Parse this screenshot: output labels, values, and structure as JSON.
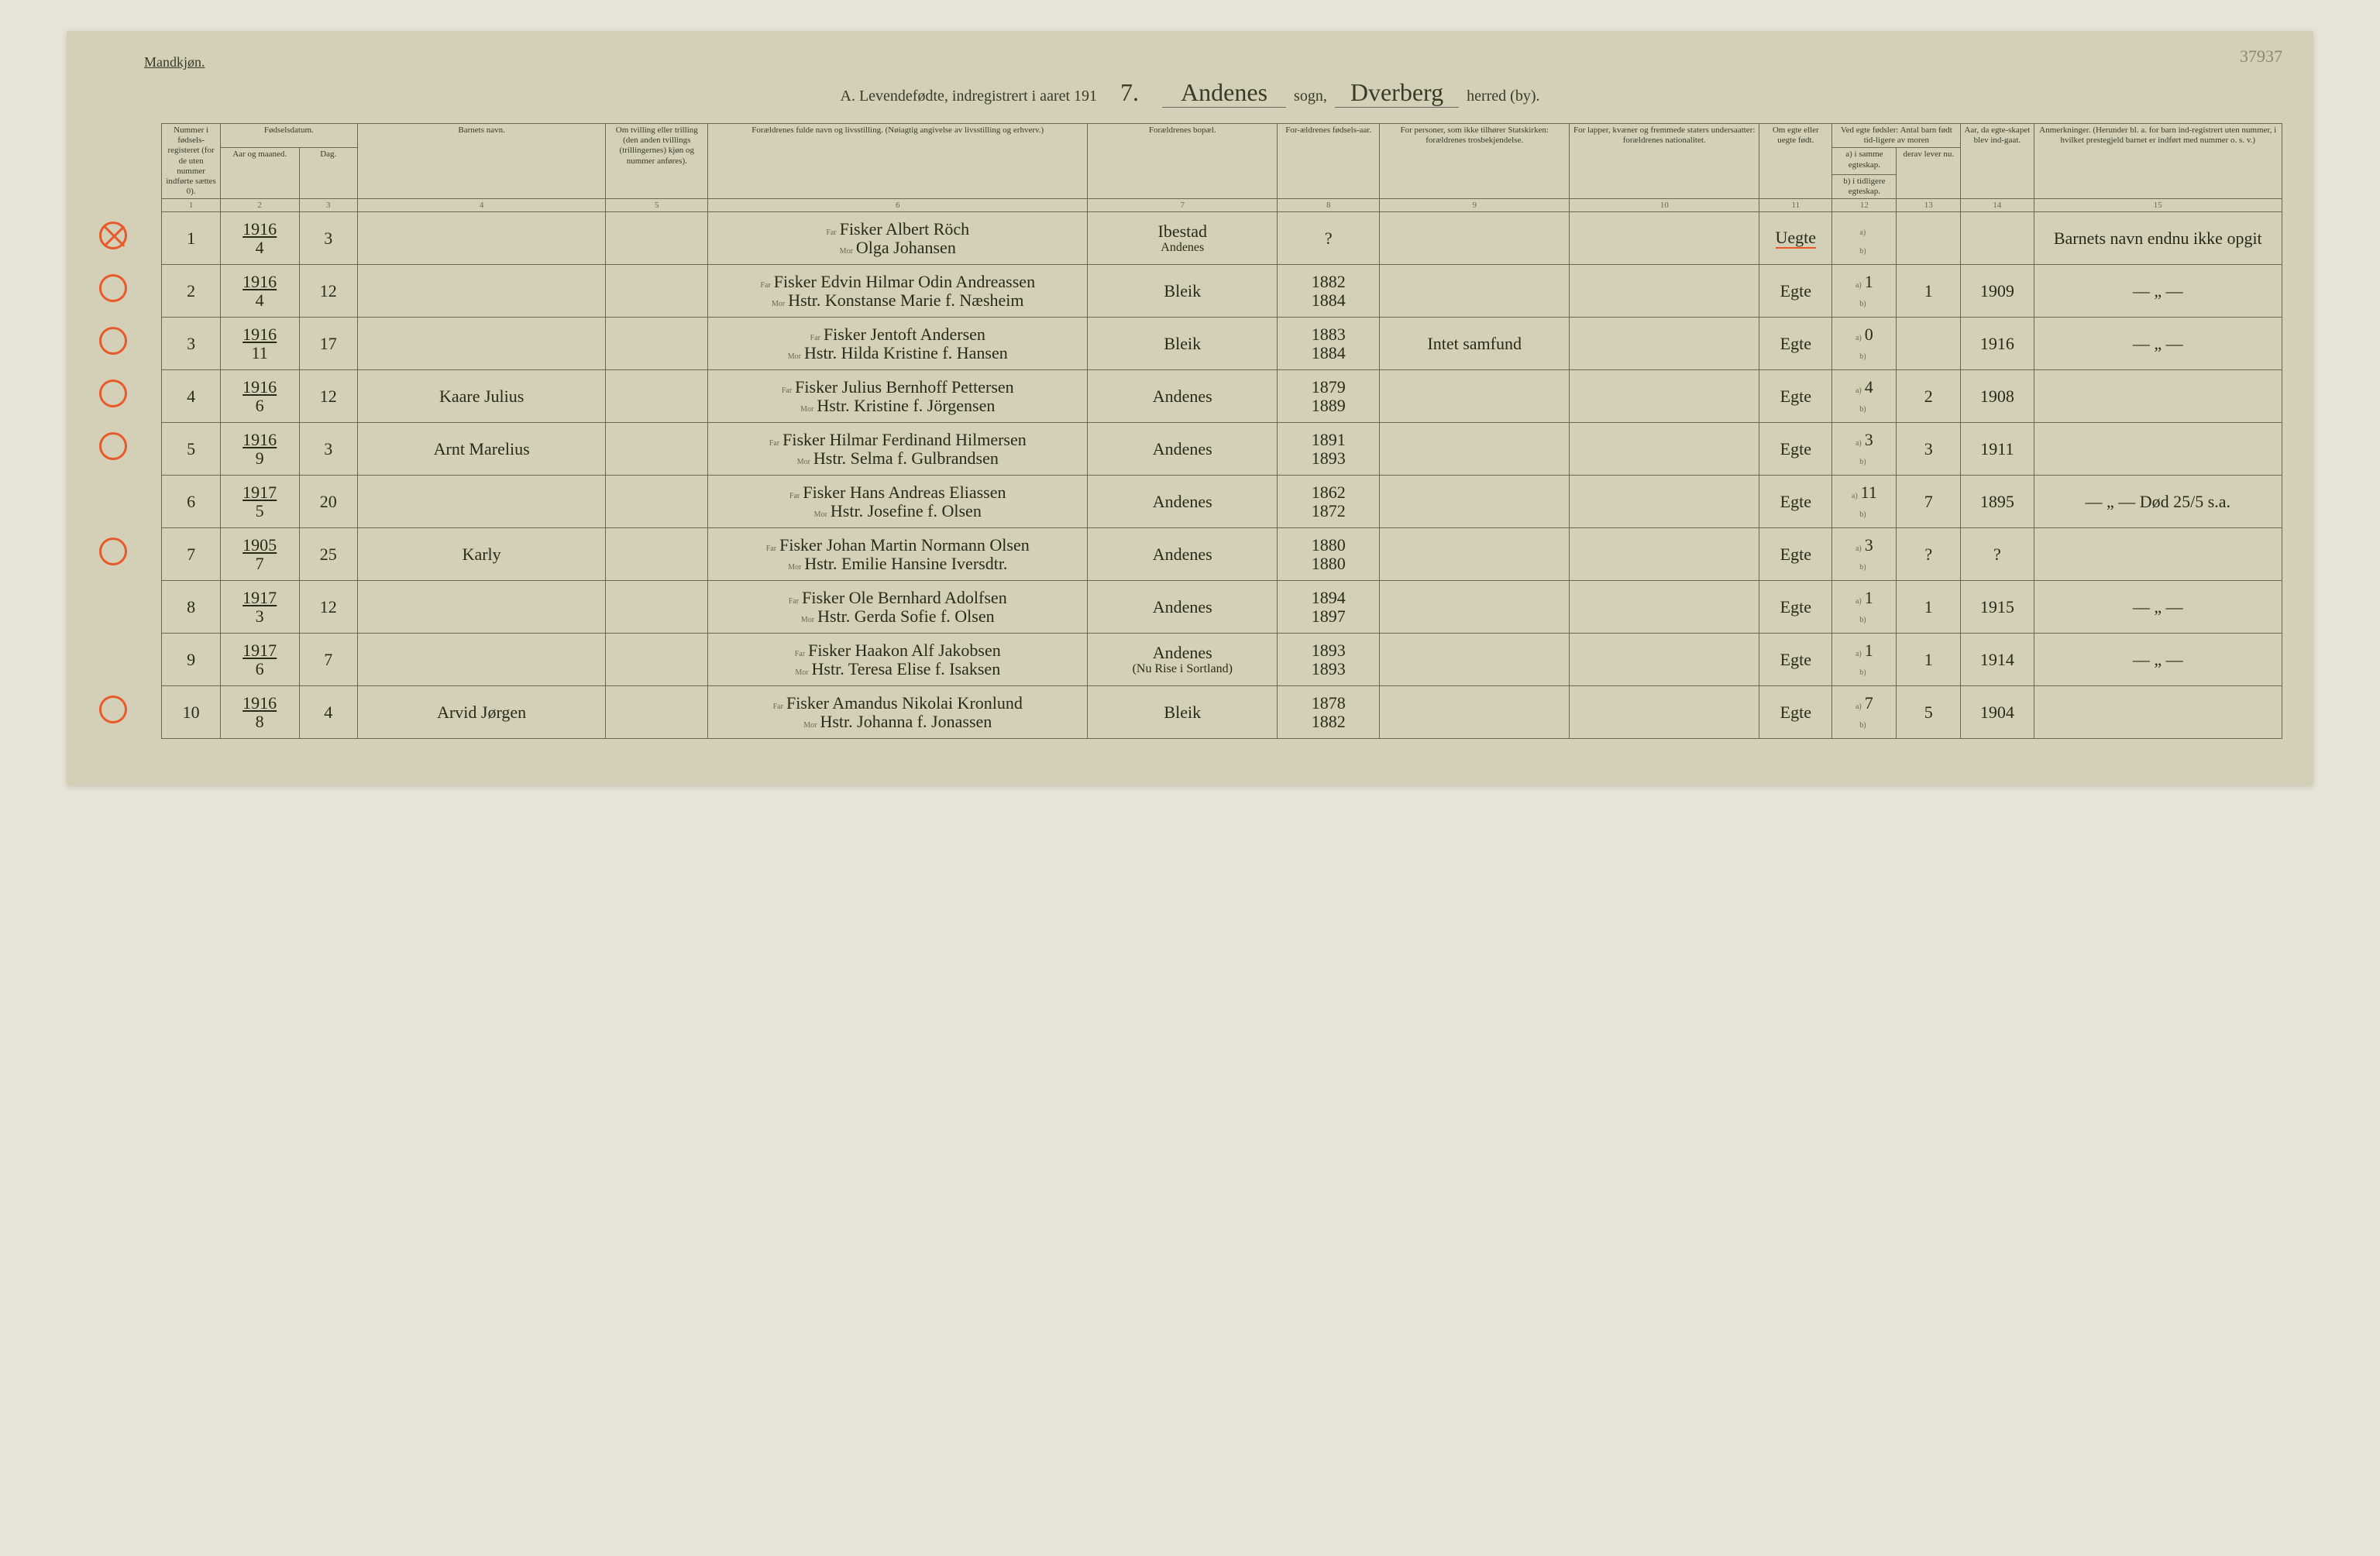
{
  "page": {
    "gender_label": "Mandkjøn.",
    "page_number_top": "37937",
    "title_prefix": "A.  Levendefødte, indregistrert i aaret 191",
    "title_year_suffix": "7.",
    "sogn_word": "sogn,",
    "herred_word": "herred (by).",
    "sogn_name": "Andenes",
    "herred_name": "Dverberg"
  },
  "columns": {
    "c1": "Nummer i fødsels-registeret (for de uten nummer indførte sættes 0).",
    "c2_group": "Fødselsdatum.",
    "c2a": "Aar og maaned.",
    "c2b": "Dag.",
    "c4": "Barnets navn.",
    "c5": "Om tvilling eller trilling (den anden tvillings (trillingernes) kjøn og nummer anføres).",
    "c6": "Forældrenes fulde navn og livsstilling. (Nøiagtig angivelse av livsstilling og erhverv.)",
    "c7": "Forældrenes bopæl.",
    "c8": "For-ældrenes fødsels-aar.",
    "c9": "For personer, som ikke tilhører Statskirken: forældrenes trosbekjendelse.",
    "c10": "For lapper, kvæner og fremmede staters undersaatter: forældrenes nationalitet.",
    "c11": "Om egte eller uegte født.",
    "c12_group": "Ved egte fødsler: Antal barn født tid-ligere av moren",
    "c12a": "a) i samme egteskap.",
    "c12b": "b) i tidligere egteskap.",
    "c13": "derav lever nu.",
    "c14": "Aar, da egte-skapet blev ind-gaat.",
    "c15": "Anmerkninger. (Herunder bl. a. for barn ind-registrert uten nummer, i hvilket prestegjeld barnet er indført med nummer o. s. v.)",
    "far": "Far",
    "mor": "Mor"
  },
  "colnums": [
    "1",
    "2",
    "3",
    "4",
    "5",
    "6",
    "7",
    "8",
    "9",
    "10",
    "11",
    "12",
    "13",
    "14",
    "15"
  ],
  "rows": [
    {
      "circle": "crossed",
      "num": "1",
      "year": "1916",
      "month": "4",
      "day": "3",
      "child": "",
      "far": "Fisker Albert Röch",
      "mor": "Olga Johansen",
      "bopel_far": "Ibestad",
      "bopel_mor": "Andenes",
      "fy_far": "?",
      "fy_mor": "",
      "rel": "",
      "nat": "",
      "egte": "Uegte",
      "c12a": "",
      "c13": "",
      "c14": "",
      "remarks": "Barnets navn endnu ikke opgit"
    },
    {
      "circle": "open",
      "num": "2",
      "year": "1916",
      "month": "4",
      "day": "12",
      "child": "",
      "far": "Fisker Edvin Hilmar Odin Andreassen",
      "mor": "Hstr. Konstanse Marie f. Næsheim",
      "bopel_far": "Bleik",
      "bopel_mor": "",
      "fy_far": "1882",
      "fy_mor": "1884",
      "rel": "",
      "nat": "",
      "egte": "Egte",
      "c12a": "1",
      "c13": "1",
      "c14": "1909",
      "remarks": "— „ —"
    },
    {
      "circle": "open",
      "num": "3",
      "year": "1916",
      "month": "11",
      "day": "17",
      "child": "",
      "far": "Fisker Jentoft Andersen",
      "mor": "Hstr. Hilda Kristine f. Hansen",
      "bopel_far": "Bleik",
      "bopel_mor": "",
      "fy_far": "1883",
      "fy_mor": "1884",
      "rel": "Intet samfund",
      "nat": "",
      "egte": "Egte",
      "c12a": "0",
      "c13": "",
      "c14": "1916",
      "remarks": "— „ —"
    },
    {
      "circle": "open",
      "num": "4",
      "year": "1916",
      "month": "6",
      "day": "12",
      "child": "Kaare Julius",
      "far": "Fisker Julius Bernhoff Pettersen",
      "mor": "Hstr. Kristine f. Jörgensen",
      "bopel_far": "Andenes",
      "bopel_mor": "",
      "fy_far": "1879",
      "fy_mor": "1889",
      "rel": "",
      "nat": "",
      "egte": "Egte",
      "c12a": "4",
      "c13": "2",
      "c14": "1908",
      "remarks": ""
    },
    {
      "circle": "open",
      "num": "5",
      "year": "1916",
      "month": "9",
      "day": "3",
      "child": "Arnt Marelius",
      "far": "Fisker Hilmar Ferdinand Hilmersen",
      "mor": "Hstr. Selma f. Gulbrandsen",
      "bopel_far": "Andenes",
      "bopel_mor": "",
      "fy_far": "1891",
      "fy_mor": "1893",
      "rel": "",
      "nat": "",
      "egte": "Egte",
      "c12a": "3",
      "c13": "3",
      "c14": "1911",
      "remarks": ""
    },
    {
      "circle": "none",
      "num": "6",
      "year": "1917",
      "month": "5",
      "day": "20",
      "child": "",
      "far": "Fisker Hans Andreas Eliassen",
      "mor": "Hstr. Josefine f. Olsen",
      "bopel_far": "Andenes",
      "bopel_mor": "",
      "fy_far": "1862",
      "fy_mor": "1872",
      "rel": "",
      "nat": "",
      "egte": "Egte",
      "c12a": "11",
      "c13": "7",
      "c14": "1895",
      "remarks": "— „ —  Død 25/5 s.a."
    },
    {
      "circle": "open",
      "num": "7",
      "year": "1905",
      "month": "7",
      "day": "25",
      "child": "Karly",
      "far": "Fisker Johan Martin Normann Olsen",
      "mor": "Hstr. Emilie Hansine Iversdtr.",
      "bopel_far": "Andenes",
      "bopel_mor": "",
      "fy_far": "1880",
      "fy_mor": "1880",
      "rel": "",
      "nat": "",
      "egte": "Egte",
      "c12a": "3",
      "c13": "?",
      "c14": "?",
      "remarks": ""
    },
    {
      "circle": "none",
      "num": "8",
      "year": "1917",
      "month": "3",
      "day": "12",
      "child": "",
      "far": "Fisker Ole Bernhard Adolfsen",
      "mor": "Hstr. Gerda Sofie f. Olsen",
      "bopel_far": "Andenes",
      "bopel_mor": "",
      "fy_far": "1894",
      "fy_mor": "1897",
      "rel": "",
      "nat": "",
      "egte": "Egte",
      "c12a": "1",
      "c13": "1",
      "c14": "1915",
      "remarks": "— „ —"
    },
    {
      "circle": "none",
      "num": "9",
      "year": "1917",
      "month": "6",
      "day": "7",
      "child": "",
      "far": "Fisker Haakon Alf Jakobsen",
      "mor": "Hstr. Teresa Elise f. Isaksen",
      "bopel_far": "Andenes",
      "bopel_mor": "(Nu Rise i Sortland)",
      "fy_far": "1893",
      "fy_mor": "1893",
      "rel": "",
      "nat": "",
      "egte": "Egte",
      "c12a": "1",
      "c13": "1",
      "c14": "1914",
      "remarks": "— „ —"
    },
    {
      "circle": "open",
      "num": "10",
      "year": "1916",
      "month": "8",
      "day": "4",
      "child": "Arvid Jørgen",
      "far": "Fisker Amandus Nikolai Kronlund",
      "mor": "Hstr. Johanna f. Jonassen",
      "bopel_far": "Bleik",
      "bopel_mor": "",
      "fy_far": "1878",
      "fy_mor": "1882",
      "rel": "",
      "nat": "",
      "egte": "Egte",
      "c12a": "7",
      "c13": "5",
      "c14": "1904",
      "remarks": ""
    }
  ],
  "styling": {
    "paper_bg": "#d4d0b8",
    "body_bg": "#e8e4d8",
    "ink": "#2a2a1a",
    "print_ink": "#3a3a2a",
    "border": "#6a6a4a",
    "red": "#e85a2a",
    "hand_font": "Brush Script MT, cursive",
    "print_font": "Georgia, serif",
    "header_fontsize_pt": 14,
    "cell_fontsize_pt": 8,
    "hand_fontsize_pt": 16
  }
}
